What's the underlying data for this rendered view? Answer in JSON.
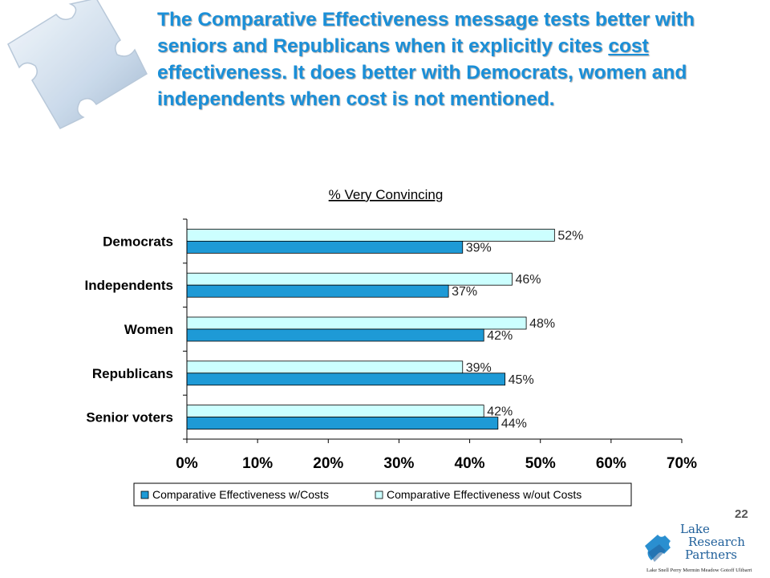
{
  "slide": {
    "title_before": "The Comparative Effectiveness message tests better with seniors and Republicans when it explicitly cites ",
    "title_emphasis": "cost",
    "title_after": " effectiveness.  It does better with Democrats, women and independents when cost is not mentioned.",
    "page_number": "22"
  },
  "logo": {
    "line1": "Lake",
    "line2": "Research",
    "line3": "Partners",
    "partners": "Lake  Snell  Perry  Mermin  Meadow  Gotoff  Ulibarri"
  },
  "colors": {
    "title": "#1a8fd8",
    "with_costs": "#1e9ad6",
    "without_costs": "#ccffff",
    "bar_outline": "#000000"
  },
  "icons": [
    "puzzle-piece-icon",
    "lake-research-logo-icon"
  ],
  "chart_data": {
    "type": "bar",
    "orientation": "horizontal",
    "title": "% Very Convincing",
    "categories": [
      "Democrats",
      "Independents",
      "Women",
      "Republicans",
      "Senior voters"
    ],
    "series": [
      {
        "name": "Comparative Effectiveness w/Costs",
        "values": [
          39,
          37,
          42,
          45,
          44
        ],
        "labels": [
          "39%",
          "37%",
          "42%",
          "45%",
          "44%"
        ]
      },
      {
        "name": "Comparative Effectiveness w/out Costs",
        "values": [
          52,
          46,
          48,
          39,
          42
        ],
        "labels": [
          "52%",
          "46%",
          "48%",
          "39%",
          "42%"
        ]
      }
    ],
    "xlim": [
      0,
      70
    ],
    "xticks": [
      0,
      10,
      20,
      30,
      40,
      50,
      60,
      70
    ],
    "xtick_labels": [
      "0%",
      "10%",
      "20%",
      "30%",
      "40%",
      "50%",
      "60%",
      "70%"
    ],
    "grid": false,
    "legend": "bottom"
  }
}
